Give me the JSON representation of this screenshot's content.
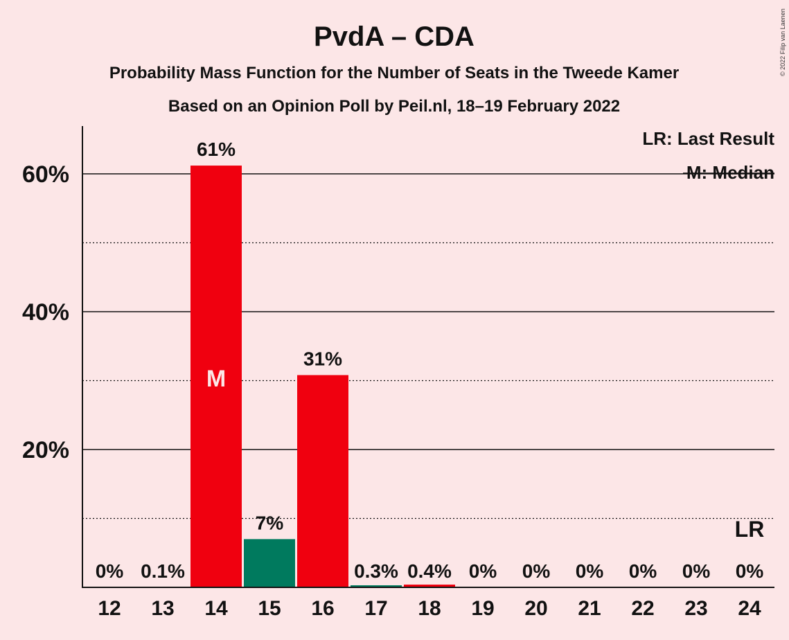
{
  "chart_data": {
    "type": "bar",
    "title": "PvdA – CDA",
    "subtitle": "Probability Mass Function for the Number of Seats in the Tweede Kamer",
    "subtitle2": "Based on an Opinion Poll by Peil.nl, 18–19 February 2022",
    "copyright": "© 2022 Filip van Laenen",
    "categories": [
      "12",
      "13",
      "14",
      "15",
      "16",
      "17",
      "18",
      "19",
      "20",
      "21",
      "22",
      "23",
      "24"
    ],
    "values": [
      0,
      0.1,
      61.2,
      7.0,
      30.8,
      0.3,
      0.4,
      0,
      0,
      0,
      0,
      0,
      0
    ],
    "data_labels": [
      "0%",
      "0.1%",
      "61%",
      "7%",
      "31%",
      "0.3%",
      "0.4%",
      "0%",
      "0%",
      "0%",
      "0%",
      "0%",
      "0%"
    ],
    "bar_colors": [
      "#F0000F",
      "#F0000F",
      "#F0000F",
      "#007A5E",
      "#F0000F",
      "#007A5E",
      "#F0000F",
      "#F0000F",
      "#F0000F",
      "#F0000F",
      "#F0000F",
      "#F0000F",
      "#F0000F"
    ],
    "ylim": [
      0,
      67
    ],
    "yticks": [
      20,
      40,
      60
    ],
    "ytick_labels": [
      "20%",
      "40%",
      "60%"
    ],
    "minor_gridlines": [
      10,
      30,
      50
    ],
    "median_seat": "14",
    "median_marker": "M",
    "last_result_seat": "24",
    "last_result_marker": "LR",
    "legend": [
      "LR: Last Result",
      "M: Median"
    ],
    "legend_position": "top-right",
    "grid": true
  },
  "colors": {
    "background": "#FCE6E7",
    "party_red": "#F0000F",
    "party_green": "#007A5E"
  }
}
